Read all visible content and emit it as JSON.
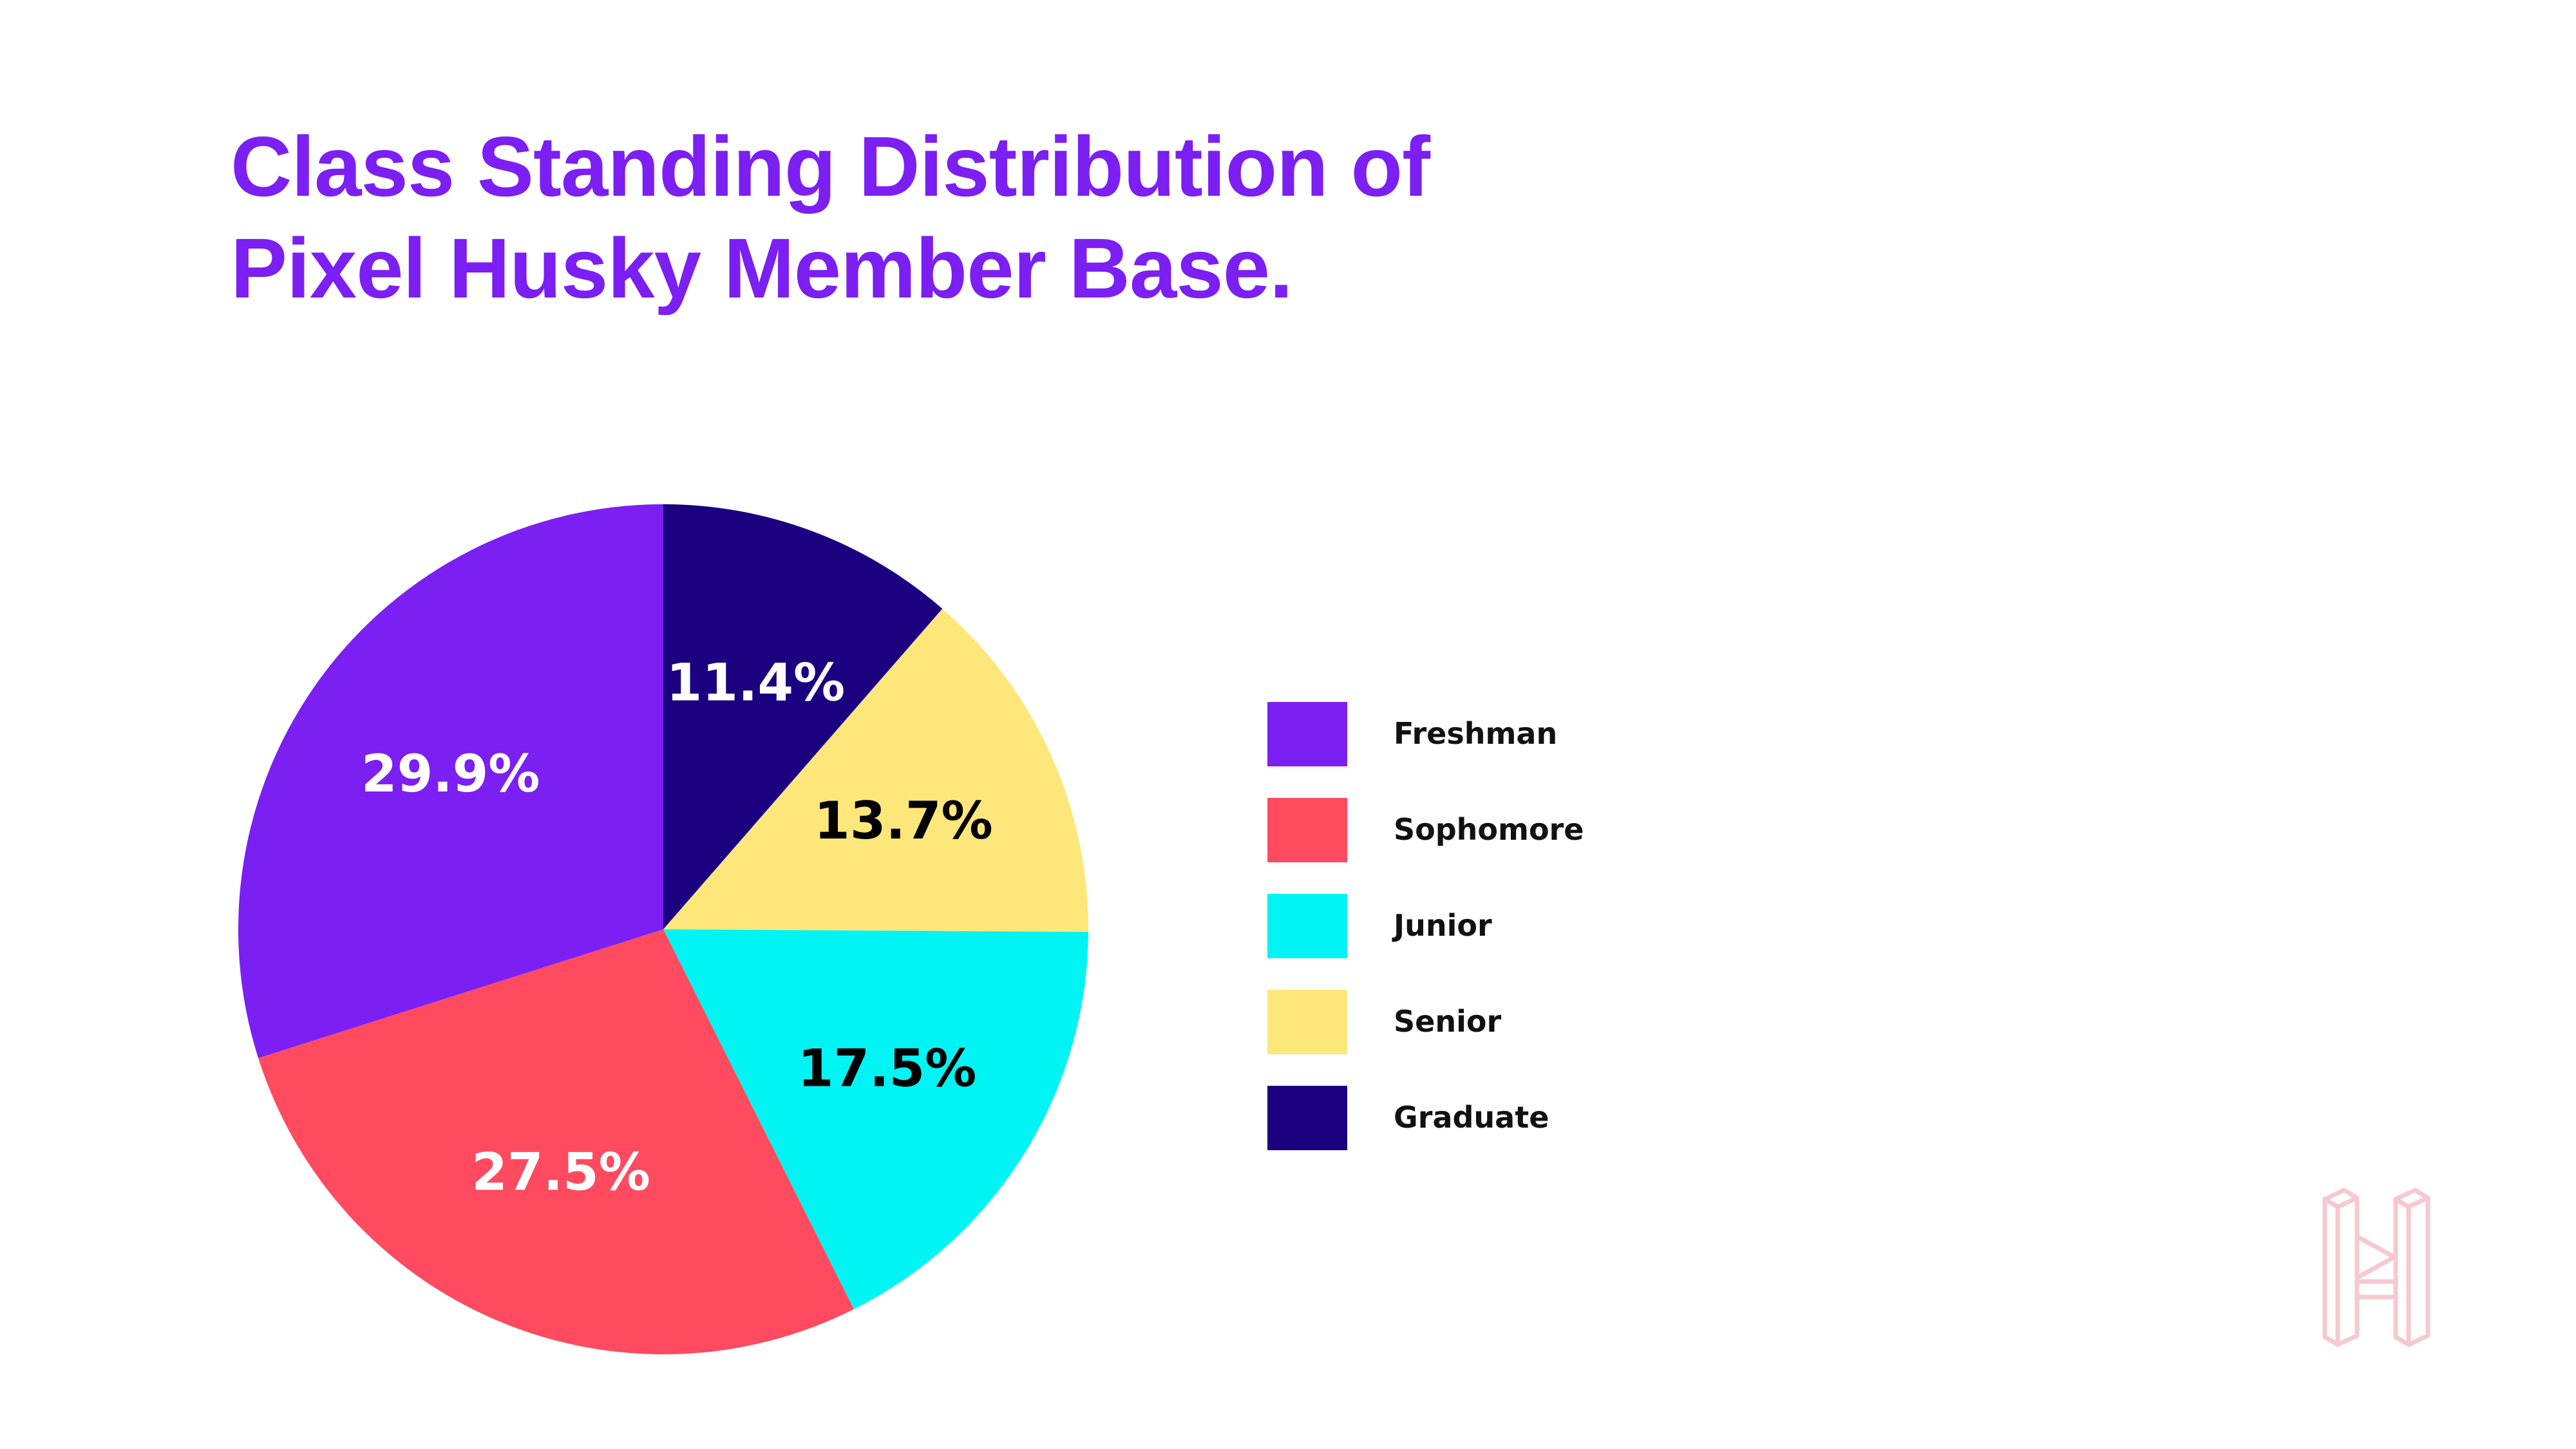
{
  "title": {
    "line1": "Class Standing Distribution of",
    "line2": "Pixel Husky Member Base."
  },
  "colors": {
    "title": "#7b1ff3",
    "freshman": "#7b1ff3",
    "sophomore": "#ff4a5f",
    "junior": "#00f4f4",
    "senior": "#fee77a",
    "graduate": "#1b0080",
    "logo": "#f6c9cf"
  },
  "chart_data": {
    "type": "pie",
    "title": "Class Standing Distribution of Pixel Husky Member Base.",
    "categories": [
      "Graduate",
      "Senior",
      "Junior",
      "Sophomore",
      "Freshman"
    ],
    "values": [
      11.4,
      13.7,
      17.5,
      27.5,
      29.9
    ],
    "labels": [
      "11.4%",
      "13.7%",
      "17.5%",
      "27.5%",
      "29.9%"
    ],
    "colors": [
      "#1b0080",
      "#fee77a",
      "#00f4f4",
      "#ff4a5f",
      "#7b1ff3"
    ],
    "label_colors": [
      "#ffffff",
      "#000000",
      "#000000",
      "#ffffff",
      "#ffffff"
    ],
    "start": "top, clockwise",
    "legend_placement": "right",
    "legend": [
      "Freshman",
      "Sophomore",
      "Junior",
      "Senior",
      "Graduate"
    ]
  },
  "legend": {
    "items": [
      {
        "label": "Freshman",
        "color": "#7b1ff3"
      },
      {
        "label": "Sophomore",
        "color": "#ff4a5f"
      },
      {
        "label": "Junior",
        "color": "#00f4f4"
      },
      {
        "label": "Senior",
        "color": "#fee77a"
      },
      {
        "label": "Graduate",
        "color": "#1b0080"
      }
    ]
  },
  "logo": {
    "icon": "pixel-husky-logo-icon"
  }
}
